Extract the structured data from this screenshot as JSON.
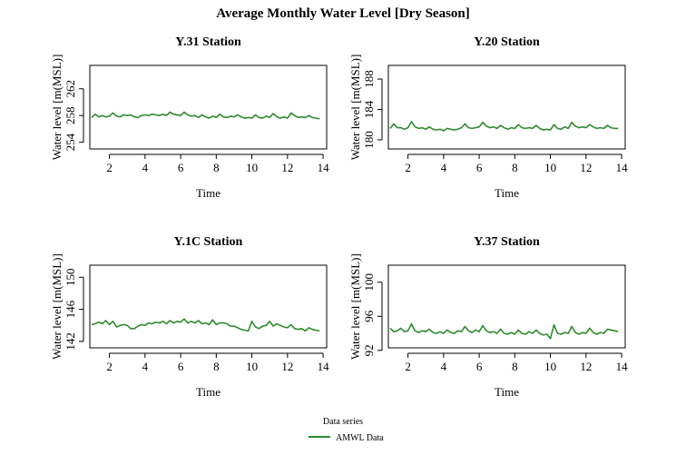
{
  "title": "Average Monthly Water Level [Dry Season]",
  "legend": {
    "heading": "Data series",
    "label": "AMWL Data",
    "color": "#2e8b2e"
  },
  "line_color": "#2e8b2e",
  "chart_data": [
    {
      "type": "line",
      "title": "Y.31 Station",
      "xlabel": "Time",
      "ylabel": "Water level [m(MSL)]",
      "xlim": [
        0.9,
        14.2
      ],
      "ylim": [
        253.0,
        265.5
      ],
      "xticks": [
        2,
        4,
        6,
        8,
        10,
        12,
        14
      ],
      "yticks": [
        254,
        258,
        262
      ],
      "series": [
        {
          "name": "AMWL Data",
          "x": [
            1.0,
            1.2,
            1.4,
            1.6,
            1.8,
            2.0,
            2.2,
            2.4,
            2.6,
            2.8,
            3.0,
            3.2,
            3.4,
            3.6,
            3.8,
            4.0,
            4.2,
            4.4,
            4.6,
            4.8,
            5.0,
            5.2,
            5.4,
            5.6,
            5.8,
            6.0,
            6.2,
            6.4,
            6.6,
            6.8,
            7.0,
            7.2,
            7.4,
            7.6,
            7.8,
            8.0,
            8.2,
            8.4,
            8.6,
            8.8,
            9.0,
            9.2,
            9.4,
            9.6,
            9.8,
            10.0,
            10.2,
            10.4,
            10.6,
            10.8,
            11.0,
            11.2,
            11.4,
            11.6,
            11.8,
            12.0,
            12.2,
            12.4,
            12.6,
            12.8,
            13.0,
            13.2,
            13.4,
            13.6,
            13.8
          ],
          "y": [
            257.7,
            258.2,
            257.8,
            258.0,
            257.8,
            257.9,
            258.4,
            257.9,
            257.8,
            258.1,
            258.0,
            258.1,
            257.8,
            257.7,
            258.0,
            258.1,
            258.0,
            258.2,
            258.1,
            258.0,
            258.2,
            258.0,
            258.5,
            258.2,
            258.1,
            258.0,
            258.5,
            258.1,
            257.9,
            258.0,
            257.7,
            258.1,
            257.8,
            257.6,
            257.9,
            257.7,
            258.2,
            257.8,
            257.7,
            257.9,
            257.8,
            258.1,
            257.8,
            257.6,
            257.7,
            257.6,
            258.1,
            257.7,
            257.6,
            257.9,
            257.7,
            258.3,
            257.8,
            257.6,
            257.8,
            257.6,
            258.4,
            258.0,
            257.7,
            257.8,
            257.7,
            258.0,
            257.7,
            257.6,
            257.5
          ]
        }
      ]
    },
    {
      "type": "line",
      "title": "Y.20 Station",
      "xlabel": "Time",
      "ylabel": "Water level [m(MSL)]",
      "xlim": [
        0.9,
        14.2
      ],
      "ylim": [
        178.8,
        189.8
      ],
      "xticks": [
        2,
        4,
        6,
        8,
        10,
        12,
        14
      ],
      "yticks": [
        180,
        184,
        188
      ],
      "series": [
        {
          "name": "AMWL Data",
          "x": [
            1.0,
            1.2,
            1.4,
            1.6,
            1.8,
            2.0,
            2.2,
            2.4,
            2.6,
            2.8,
            3.0,
            3.2,
            3.4,
            3.6,
            3.8,
            4.0,
            4.2,
            4.4,
            4.6,
            4.8,
            5.0,
            5.2,
            5.4,
            5.6,
            5.8,
            6.0,
            6.2,
            6.4,
            6.6,
            6.8,
            7.0,
            7.2,
            7.4,
            7.6,
            7.8,
            8.0,
            8.2,
            8.4,
            8.6,
            8.8,
            9.0,
            9.2,
            9.4,
            9.6,
            9.8,
            10.0,
            10.2,
            10.4,
            10.6,
            10.8,
            11.0,
            11.2,
            11.4,
            11.6,
            11.8,
            12.0,
            12.2,
            12.4,
            12.6,
            12.8,
            13.0,
            13.2,
            13.4,
            13.6,
            13.8
          ],
          "y": [
            181.5,
            182.1,
            181.6,
            181.6,
            181.4,
            181.6,
            182.4,
            181.7,
            181.5,
            181.6,
            181.4,
            181.7,
            181.4,
            181.3,
            181.4,
            181.2,
            181.5,
            181.4,
            181.3,
            181.4,
            181.6,
            182.1,
            181.6,
            181.5,
            181.6,
            181.7,
            182.3,
            181.8,
            181.6,
            181.7,
            181.5,
            181.9,
            181.6,
            181.4,
            181.6,
            181.5,
            182.0,
            181.6,
            181.5,
            181.6,
            181.5,
            181.9,
            181.5,
            181.3,
            181.4,
            181.3,
            182.0,
            181.5,
            181.4,
            181.7,
            181.5,
            182.3,
            181.8,
            181.6,
            181.7,
            181.6,
            182.0,
            181.7,
            181.5,
            181.6,
            181.5,
            181.9,
            181.6,
            181.5,
            181.5
          ]
        }
      ]
    },
    {
      "type": "line",
      "title": "Y.1C Station",
      "xlabel": "Time",
      "ylabel": "Water level [m(MSL)]",
      "xlim": [
        0.9,
        14.2
      ],
      "ylim": [
        141.2,
        151.5
      ],
      "xticks": [
        2,
        4,
        6,
        8,
        10,
        12,
        14
      ],
      "yticks": [
        142,
        146,
        150
      ],
      "series": [
        {
          "name": "AMWL Data",
          "x": [
            1.0,
            1.2,
            1.4,
            1.6,
            1.8,
            2.0,
            2.2,
            2.4,
            2.6,
            2.8,
            3.0,
            3.2,
            3.4,
            3.6,
            3.8,
            4.0,
            4.2,
            4.4,
            4.6,
            4.8,
            5.0,
            5.2,
            5.4,
            5.6,
            5.8,
            6.0,
            6.2,
            6.4,
            6.6,
            6.8,
            7.0,
            7.2,
            7.4,
            7.6,
            7.8,
            8.0,
            8.2,
            8.4,
            8.6,
            8.8,
            9.0,
            9.2,
            9.4,
            9.6,
            9.8,
            10.0,
            10.2,
            10.4,
            10.6,
            10.8,
            11.0,
            11.2,
            11.4,
            11.6,
            11.8,
            12.0,
            12.2,
            12.4,
            12.6,
            12.8,
            13.0,
            13.2,
            13.4,
            13.6,
            13.8
          ],
          "y": [
            144.1,
            144.2,
            144.4,
            144.2,
            144.6,
            144.1,
            144.5,
            143.8,
            144.0,
            144.1,
            144.0,
            143.6,
            143.6,
            143.9,
            144.1,
            144.0,
            144.3,
            144.2,
            144.4,
            144.3,
            144.5,
            144.2,
            144.6,
            144.3,
            144.5,
            144.4,
            144.8,
            144.3,
            144.5,
            144.3,
            144.6,
            144.2,
            144.3,
            144.1,
            144.7,
            144.1,
            144.3,
            144.3,
            144.2,
            143.9,
            143.9,
            143.7,
            143.5,
            143.4,
            143.3,
            144.5,
            143.8,
            143.6,
            143.9,
            144.0,
            144.5,
            143.9,
            144.2,
            144.0,
            143.8,
            143.7,
            144.1,
            143.6,
            143.5,
            143.6,
            143.3,
            143.7,
            143.5,
            143.4,
            143.3
          ]
        }
      ]
    },
    {
      "type": "line",
      "title": "Y.37 Station",
      "xlabel": "Time",
      "ylabel": "Water level [m(MSL)]",
      "xlim": [
        0.9,
        14.2
      ],
      "ylim": [
        92.3,
        102.0
      ],
      "xticks": [
        2,
        4,
        6,
        8,
        10,
        12,
        14
      ],
      "yticks": [
        92,
        96,
        100
      ],
      "series": [
        {
          "name": "AMWL Data",
          "x": [
            1.0,
            1.2,
            1.4,
            1.6,
            1.8,
            2.0,
            2.2,
            2.4,
            2.6,
            2.8,
            3.0,
            3.2,
            3.4,
            3.6,
            3.8,
            4.0,
            4.2,
            4.4,
            4.6,
            4.8,
            5.0,
            5.2,
            5.4,
            5.6,
            5.8,
            6.0,
            6.2,
            6.4,
            6.6,
            6.8,
            7.0,
            7.2,
            7.4,
            7.6,
            7.8,
            8.0,
            8.2,
            8.4,
            8.6,
            8.8,
            9.0,
            9.2,
            9.4,
            9.6,
            9.8,
            10.0,
            10.2,
            10.4,
            10.6,
            10.8,
            11.0,
            11.2,
            11.4,
            11.6,
            11.8,
            12.0,
            12.2,
            12.4,
            12.6,
            12.8,
            13.0,
            13.2,
            13.4,
            13.6,
            13.8
          ],
          "y": [
            94.6,
            94.2,
            94.3,
            94.6,
            94.2,
            94.3,
            95.1,
            94.3,
            94.1,
            94.3,
            94.2,
            94.5,
            94.1,
            94.0,
            94.2,
            94.0,
            94.4,
            94.1,
            94.0,
            94.3,
            94.2,
            94.8,
            94.3,
            94.1,
            94.4,
            94.2,
            94.9,
            94.3,
            94.1,
            94.2,
            94.0,
            94.5,
            94.0,
            93.9,
            94.1,
            93.9,
            94.4,
            94.0,
            93.9,
            94.2,
            94.0,
            94.4,
            94.0,
            93.8,
            93.9,
            93.4,
            95.0,
            94.0,
            93.9,
            94.1,
            94.0,
            94.8,
            94.1,
            93.9,
            94.1,
            94.0,
            94.6,
            94.1,
            93.9,
            94.1,
            94.0,
            94.5,
            94.4,
            94.3,
            94.2
          ]
        }
      ]
    }
  ]
}
